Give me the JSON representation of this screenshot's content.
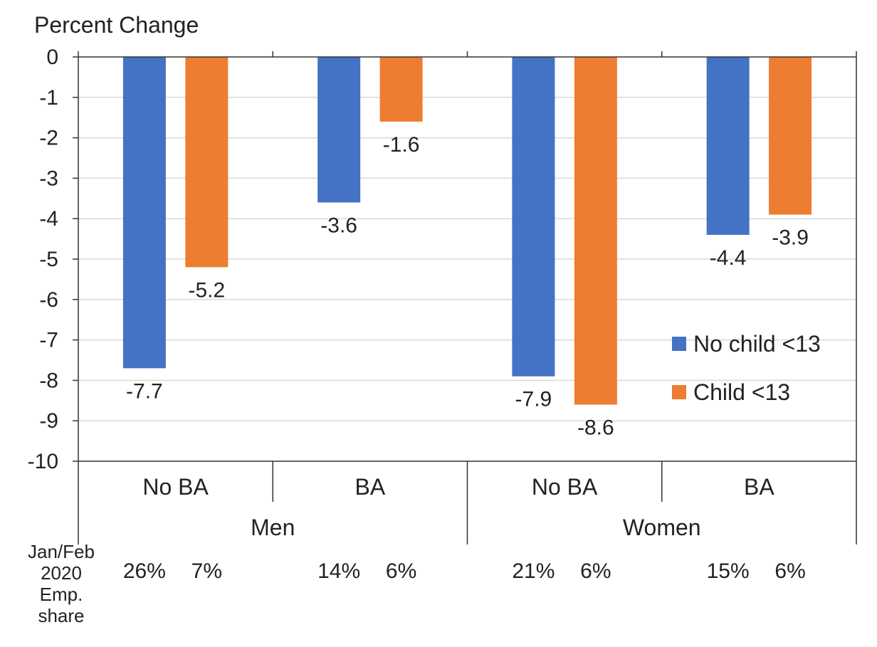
{
  "chart_data": {
    "type": "bar",
    "title": "Percent Change",
    "ylim": [
      -10,
      0
    ],
    "yticks": [
      0,
      -1,
      -2,
      -3,
      -4,
      -5,
      -6,
      -7,
      -8,
      -9,
      -10
    ],
    "grid": true,
    "legend_position": "right",
    "groups": [
      {
        "name": "Men",
        "categories": [
          "No BA",
          "BA"
        ]
      },
      {
        "name": "Women",
        "categories": [
          "No BA",
          "BA"
        ]
      }
    ],
    "categories": [
      "No BA",
      "BA",
      "No BA",
      "BA"
    ],
    "series": [
      {
        "name": "No child <13",
        "color": "#4472C4",
        "values": [
          -7.7,
          -3.6,
          -7.9,
          -4.4
        ],
        "labels": [
          "-7.7",
          "-3.6",
          "-7.9",
          "-4.4"
        ]
      },
      {
        "name": "Child <13",
        "color": "#ED7D31",
        "values": [
          -5.2,
          -1.6,
          -8.6,
          -3.9
        ],
        "labels": [
          "-5.2",
          "-1.6",
          "-8.6",
          "-3.9"
        ]
      }
    ],
    "employment_share": {
      "label_lines": [
        "Jan/Feb",
        "2020",
        "Emp.",
        "share"
      ],
      "values": [
        [
          "26%",
          "7%"
        ],
        [
          "14%",
          "6%"
        ],
        [
          "21%",
          "6%"
        ],
        [
          "15%",
          "6%"
        ]
      ]
    }
  }
}
